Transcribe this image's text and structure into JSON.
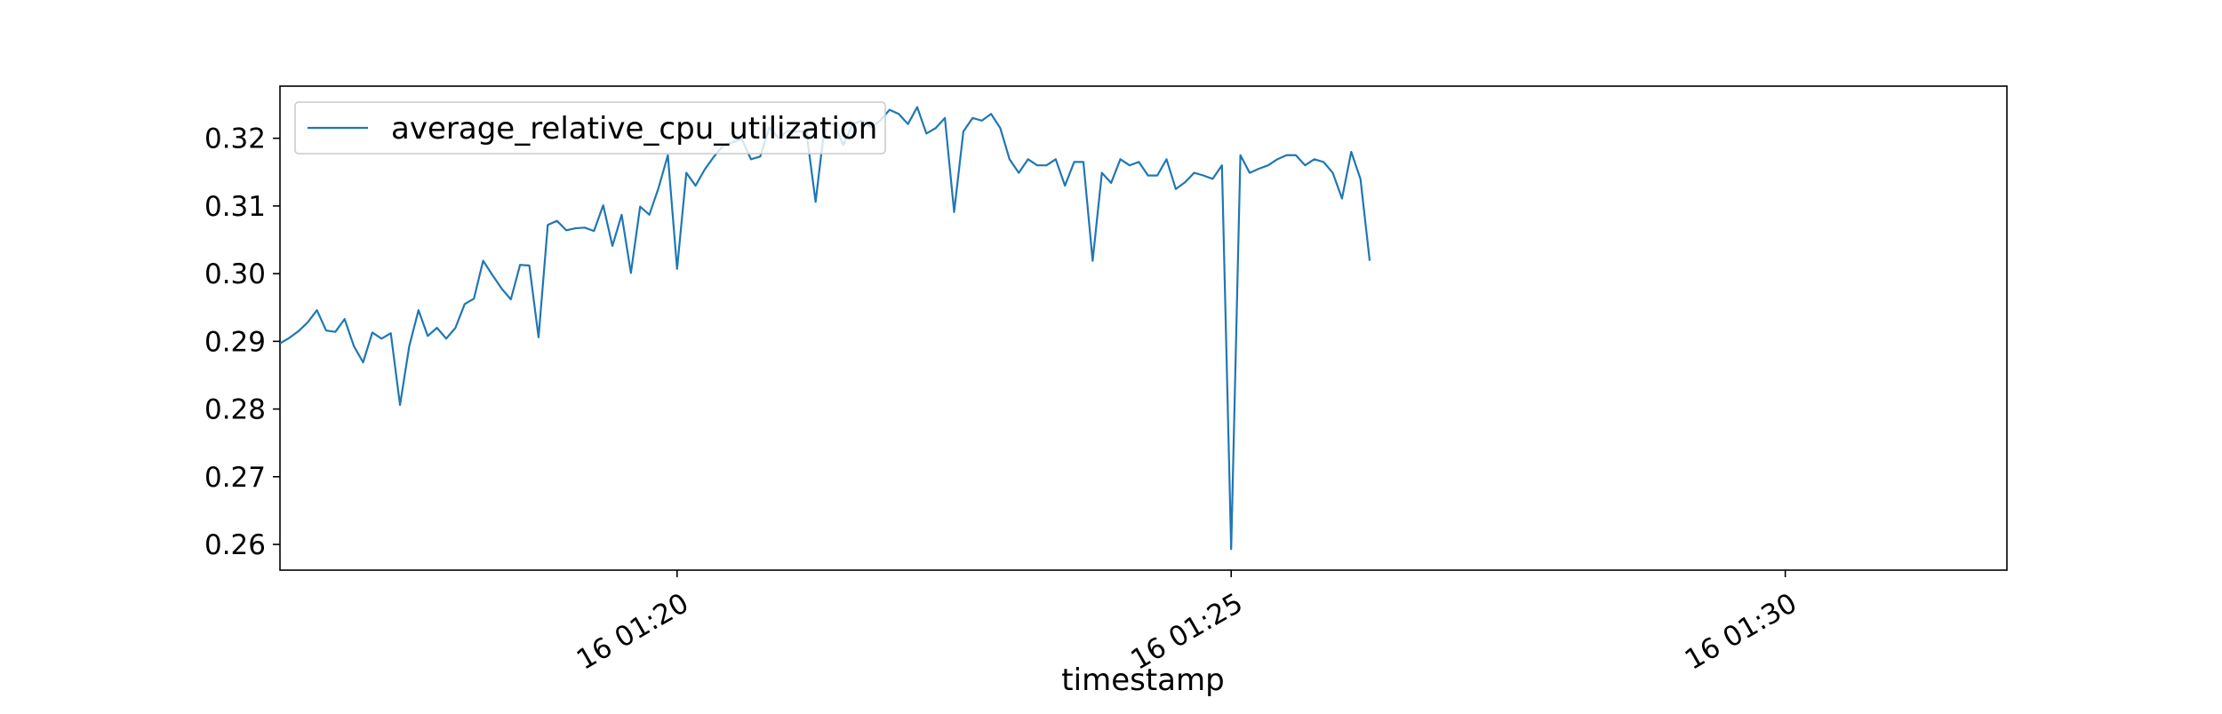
{
  "chart_data": {
    "type": "line",
    "title": "",
    "xlabel": "timestamp",
    "ylabel": "",
    "x_start": "2000-01-16 01:16:25",
    "x_step_seconds": 5,
    "xlim": [
      "2000-01-16 01:16:25",
      "2000-01-16 01:32:00"
    ],
    "ylim": [
      0.2562,
      0.3277
    ],
    "y_ticks": [
      0.26,
      0.27,
      0.28,
      0.29,
      0.3,
      0.31,
      0.32
    ],
    "y_tick_labels": [
      "0.26",
      "0.27",
      "0.28",
      "0.29",
      "0.30",
      "0.31",
      "0.32"
    ],
    "x_ticks": [
      "2000-01-16 01:20:00",
      "2000-01-16 01:25:00",
      "2000-01-16 01:30:00"
    ],
    "x_tick_labels": [
      "16 01:20",
      "16 01:25",
      "16 01:30"
    ],
    "grid": false,
    "legend_position": "top-left",
    "series": [
      {
        "name": "average_relative_cpu_utilization",
        "color": "#1f77b4",
        "values": [
          0.2897,
          0.2905,
          0.2915,
          0.2928,
          0.2946,
          0.2916,
          0.2914,
          0.2933,
          0.2893,
          0.2869,
          0.2913,
          0.2904,
          0.2912,
          0.2806,
          0.2893,
          0.2946,
          0.2908,
          0.292,
          0.2904,
          0.292,
          0.2955,
          0.2963,
          0.3019,
          0.2998,
          0.2978,
          0.2962,
          0.3013,
          0.3012,
          0.2906,
          0.3072,
          0.3078,
          0.3064,
          0.3067,
          0.3068,
          0.3063,
          0.3101,
          0.3041,
          0.3087,
          0.3001,
          0.3099,
          0.3087,
          0.3127,
          0.3175,
          0.3007,
          0.3149,
          0.313,
          0.3154,
          0.3173,
          0.3189,
          0.3194,
          0.3199,
          0.3169,
          0.3173,
          0.3216,
          0.32,
          0.3211,
          0.321,
          0.321,
          0.3106,
          0.3221,
          0.3221,
          0.319,
          0.3221,
          0.3226,
          0.3216,
          0.3226,
          0.3242,
          0.3236,
          0.3221,
          0.3246,
          0.3207,
          0.3215,
          0.323,
          0.3091,
          0.321,
          0.323,
          0.3226,
          0.3236,
          0.3215,
          0.3169,
          0.3149,
          0.3169,
          0.316,
          0.316,
          0.3169,
          0.313,
          0.3165,
          0.3165,
          0.3019,
          0.3149,
          0.3134,
          0.3169,
          0.316,
          0.3165,
          0.3145,
          0.3145,
          0.3169,
          0.3125,
          0.3135,
          0.3149,
          0.3145,
          0.314,
          0.316,
          0.2593,
          0.3175,
          0.3149,
          0.3155,
          0.316,
          0.3169,
          0.3175,
          0.3175,
          0.316,
          0.3169,
          0.3165,
          0.3149,
          0.3111,
          0.318,
          0.314,
          0.3019
        ]
      }
    ]
  }
}
